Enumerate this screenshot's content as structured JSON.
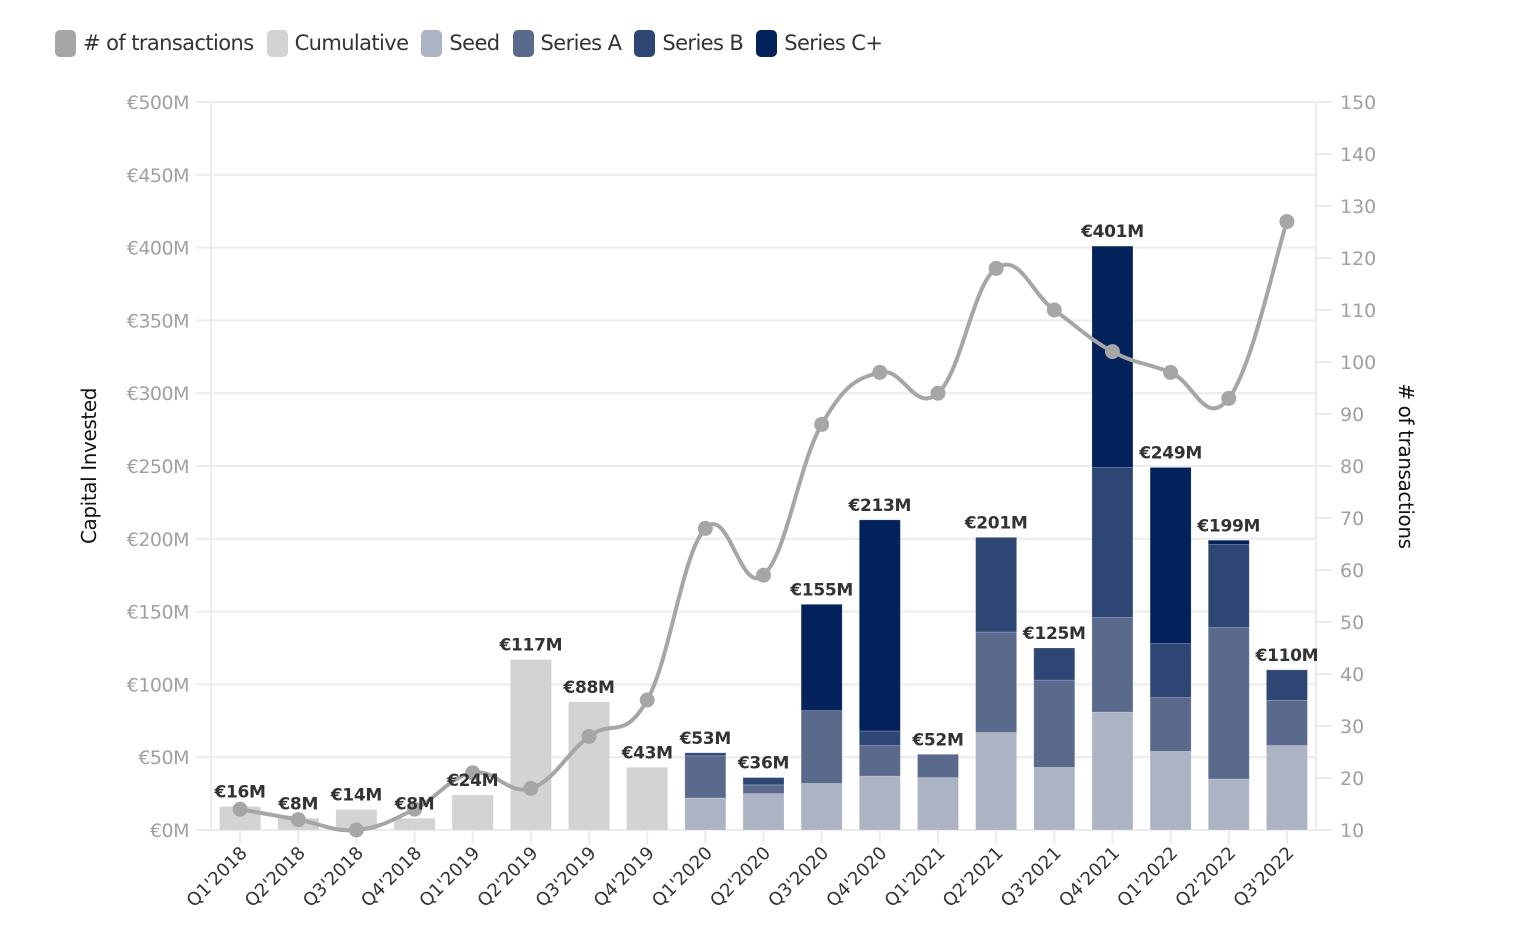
{
  "chart_data": {
    "type": "bar",
    "subtype": "stacked-bar-with-line",
    "title": "",
    "xlabel": "",
    "ylabel": "Capital Invested",
    "y2label": "# of transactions",
    "ylim": [
      0,
      500
    ],
    "y2lim": [
      10,
      150
    ],
    "grid": true,
    "legend_position": "top-left",
    "legend": [
      {
        "name": "# of transactions",
        "color": "#a6a6a6"
      },
      {
        "name": "Cumulative",
        "color": "#d3d3d3"
      },
      {
        "name": "Seed",
        "color": "#acb3c3"
      },
      {
        "name": "Series A",
        "color": "#5a6a8c"
      },
      {
        "name": "Series B",
        "color": "#2e4674"
      },
      {
        "name": "Series C+",
        "color": "#03215b"
      }
    ],
    "y_ticks": [
      "€0M",
      "€50M",
      "€100M",
      "€150M",
      "€200M",
      "€250M",
      "€300M",
      "€350M",
      "€400M",
      "€450M",
      "€500M"
    ],
    "y_tick_values": [
      0,
      50,
      100,
      150,
      200,
      250,
      300,
      350,
      400,
      450,
      500
    ],
    "y2_ticks": [
      "10",
      "20",
      "30",
      "40",
      "50",
      "60",
      "70",
      "80",
      "90",
      "100",
      "110",
      "120",
      "130",
      "140",
      "150"
    ],
    "y2_tick_values": [
      10,
      20,
      30,
      40,
      50,
      60,
      70,
      80,
      90,
      100,
      110,
      120,
      130,
      140,
      150
    ],
    "categories": [
      "Q1'2018",
      "Q2'2018",
      "Q3'2018",
      "Q4'2018",
      "Q1'2019",
      "Q2'2019",
      "Q3'2019",
      "Q4'2019",
      "Q1'2020",
      "Q2'2020",
      "Q3'2020",
      "Q4'2020",
      "Q1'2021",
      "Q2'2021",
      "Q3'2021",
      "Q4'2021",
      "Q1'2022",
      "Q2'2022",
      "Q3'2022"
    ],
    "series": [
      {
        "name": "Cumulative",
        "color": "#d3d3d3",
        "values": [
          16,
          8,
          14,
          8,
          24,
          117,
          88,
          43,
          0,
          0,
          0,
          0,
          0,
          0,
          0,
          0,
          0,
          0,
          0
        ]
      },
      {
        "name": "Seed",
        "color": "#acb3c3",
        "values": [
          0,
          0,
          0,
          0,
          0,
          0,
          0,
          0,
          22,
          25,
          32,
          37,
          36,
          67,
          43,
          81,
          54,
          35,
          58
        ]
      },
      {
        "name": "Series A",
        "color": "#5a6a8c",
        "values": [
          0,
          0,
          0,
          0,
          0,
          0,
          0,
          0,
          29,
          6,
          50,
          21,
          16,
          69,
          60,
          65,
          37,
          104,
          31
        ]
      },
      {
        "name": "Series B",
        "color": "#2e4674",
        "values": [
          0,
          0,
          0,
          0,
          0,
          0,
          0,
          0,
          2,
          5,
          0,
          10,
          0,
          65,
          22,
          103,
          37,
          57,
          21
        ]
      },
      {
        "name": "Series C+",
        "color": "#03215b",
        "values": [
          0,
          0,
          0,
          0,
          0,
          0,
          0,
          0,
          0,
          0,
          73,
          145,
          0,
          0,
          0,
          152,
          121,
          3,
          0
        ]
      }
    ],
    "totals": [
      16,
      8,
      14,
      8,
      24,
      117,
      88,
      43,
      53,
      36,
      155,
      213,
      52,
      201,
      125,
      401,
      249,
      199,
      110
    ],
    "total_labels": [
      "€16M",
      "€8M",
      "€14M",
      "€8M",
      "€24M",
      "€117M",
      "€88M",
      "€43M",
      "€53M",
      "€36M",
      "€155M",
      "€213M",
      "€52M",
      "€201M",
      "€125M",
      "€401M",
      "€249M",
      "€199M",
      "€110M"
    ],
    "line": {
      "name": "# of transactions",
      "color": "#a6a6a6",
      "axis": "right",
      "values": [
        14,
        12,
        10,
        14,
        21,
        18,
        28,
        35,
        68,
        59,
        88,
        98,
        94,
        118,
        110,
        102,
        98,
        93,
        127
      ]
    }
  }
}
